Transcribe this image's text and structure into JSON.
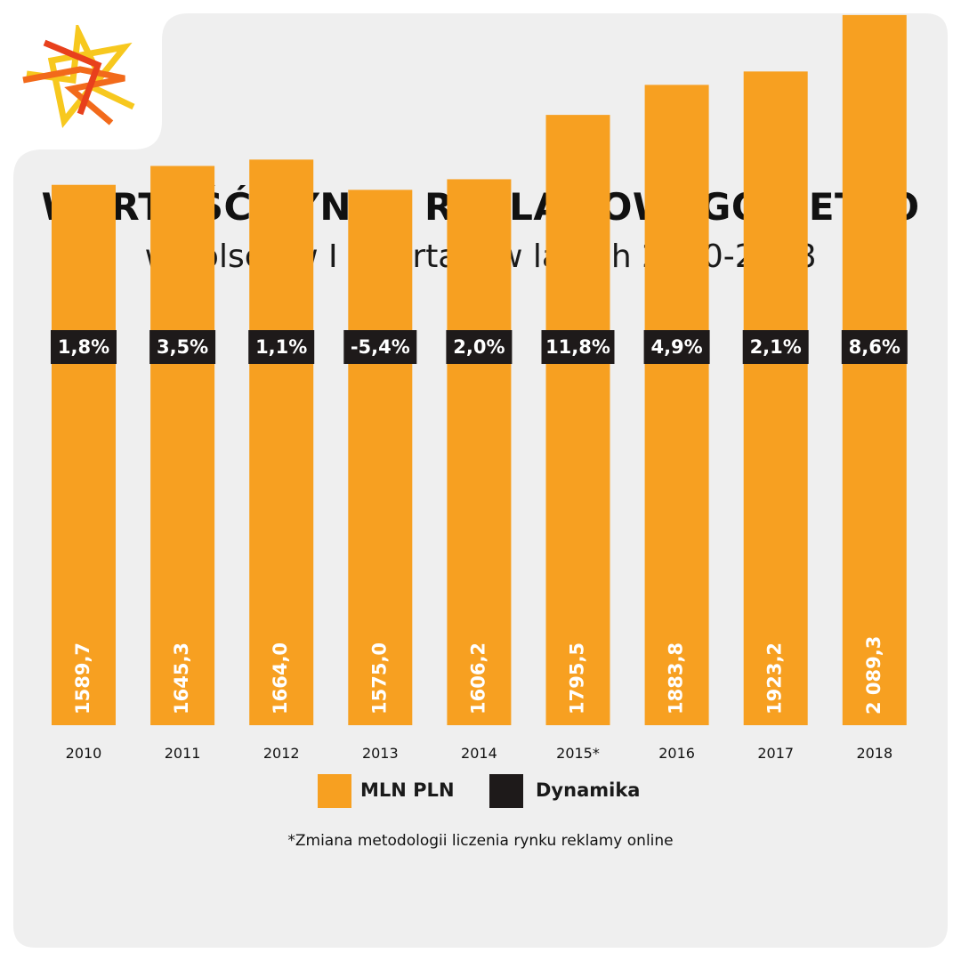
{
  "title": "WARTOŚĆ RYNKU REKLAMOWEGO NETTO",
  "subtitle": "w Polsce w I kwartale w latach 2010-2018",
  "footnote": "*Zmiana metodologii liczenia rynku reklamy online",
  "legend": {
    "bars_label": "MLN PLN",
    "dynamics_label": "Dynamika"
  },
  "colors": {
    "bar": "#F7A021",
    "badge": "#1e1a1a",
    "card": "#efefef",
    "logo_yellow": "#F7C81E",
    "logo_orange": "#F26A1B",
    "logo_red": "#E8401C"
  },
  "chart_data": {
    "type": "bar",
    "categories": [
      "2010",
      "2011",
      "2012",
      "2013",
      "2014",
      "2015*",
      "2016",
      "2017",
      "2018"
    ],
    "series": [
      {
        "name": "MLN PLN",
        "values": [
          1589.7,
          1645.3,
          1664.0,
          1575.0,
          1606.2,
          1795.5,
          1883.8,
          1923.2,
          2089.3
        ],
        "labels": [
          "1589,7",
          "1645,3",
          "1664,0",
          "1575,0",
          "1606,2",
          "1795,5",
          "1883,8",
          "1923,2",
          "2 089,3"
        ]
      },
      {
        "name": "Dynamika",
        "labels": [
          "1,8%",
          "3,5%",
          "1,1%",
          "-5,4%",
          "2,0%",
          "11,8%",
          "4,9%",
          "2,1%",
          "8,6%"
        ]
      }
    ],
    "title": "WARTOŚĆ RYNKU REKLAMOWEGO NETTO",
    "subtitle": "w Polsce w I kwartale w latach 2010-2018",
    "legend_position": "bottom",
    "grid": false
  }
}
